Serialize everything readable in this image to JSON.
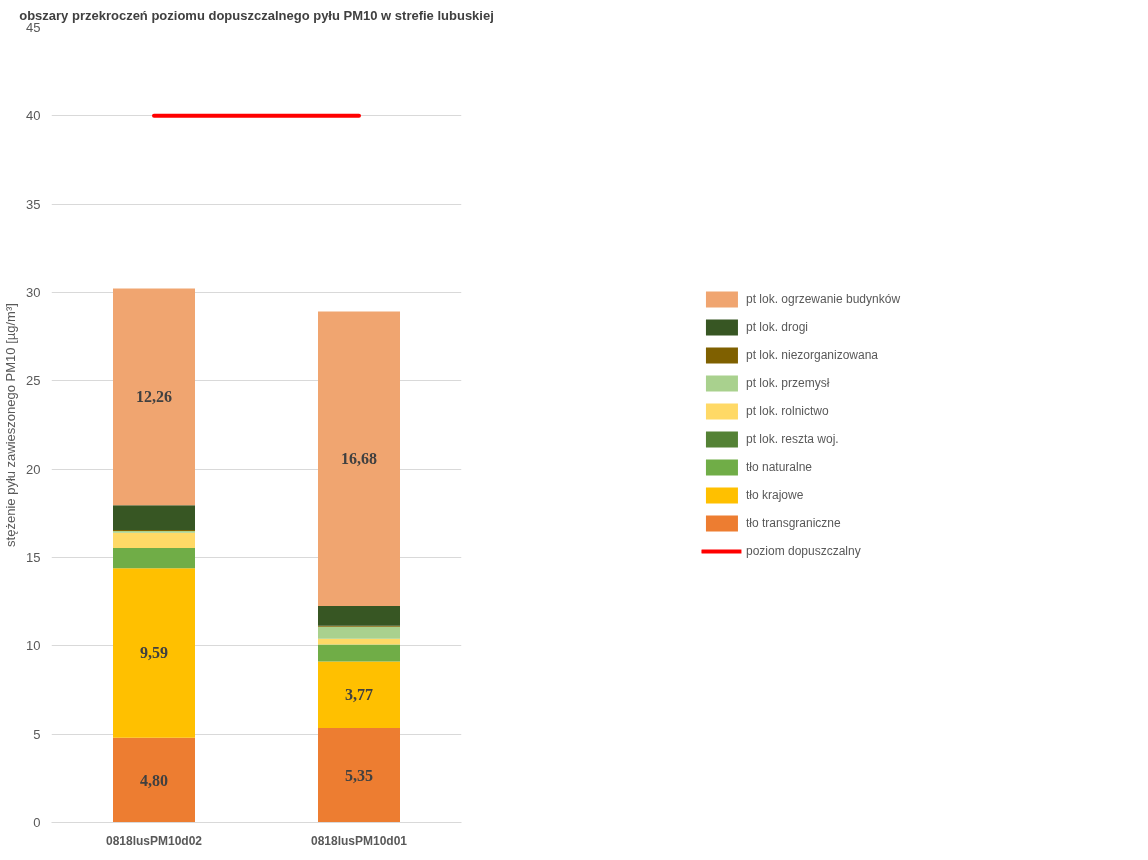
{
  "chart_data": {
    "type": "bar",
    "stacked": true,
    "title": "obszary przekroczeń poziomu dopuszczalnego pyłu PM10 w strefie lubuskiej",
    "ylabel": "stężenie pyłu zawieszonego PM10 [µg/m³]",
    "categories": [
      "0818lusPM10d02",
      "0818lusPM10d01"
    ],
    "series": [
      {
        "name": "tło transgraniczne",
        "color": "#ed7d31",
        "values": [
          4.8,
          5.35
        ],
        "value_labels": [
          "4,80",
          "5,35"
        ]
      },
      {
        "name": "tło krajowe",
        "color": "#ffc000",
        "values": [
          9.59,
          3.77
        ],
        "value_labels": [
          "9,59",
          "3,77"
        ]
      },
      {
        "name": "tło naturalne",
        "color": "#70ad47",
        "values": [
          1.15,
          0.96
        ]
      },
      {
        "name": "pt lok. reszta woj.",
        "color": "#548235",
        "values": [
          null,
          null
        ]
      },
      {
        "name": "pt lok. rolnictwo",
        "color": "#ffd966",
        "values": [
          0.86,
          0.32
        ]
      },
      {
        "name": "pt lok. przemysł",
        "color": "#a9d18e",
        "values": [
          0.1,
          0.68
        ]
      },
      {
        "name": "pt lok. niezorganizowana",
        "color": "#7f6000",
        "values": [
          0.05,
          0.05
        ]
      },
      {
        "name": "pt lok. drogi",
        "color": "#375623",
        "values": [
          1.41,
          1.12
        ]
      },
      {
        "name": "pt lok. ogrzewanie budynków",
        "color": "#f0a570",
        "values": [
          12.26,
          16.68
        ],
        "value_labels": [
          "12,26",
          "16,68"
        ]
      },
      {
        "name": "poziom dopuszczalny",
        "type": "line",
        "color": "#ff0000",
        "values": [
          40,
          40
        ]
      }
    ],
    "ylim": [
      0,
      45
    ],
    "yticks": [
      0,
      5,
      10,
      15,
      20,
      25,
      30,
      35,
      40,
      45
    ],
    "grid": "y",
    "legend": "right"
  }
}
